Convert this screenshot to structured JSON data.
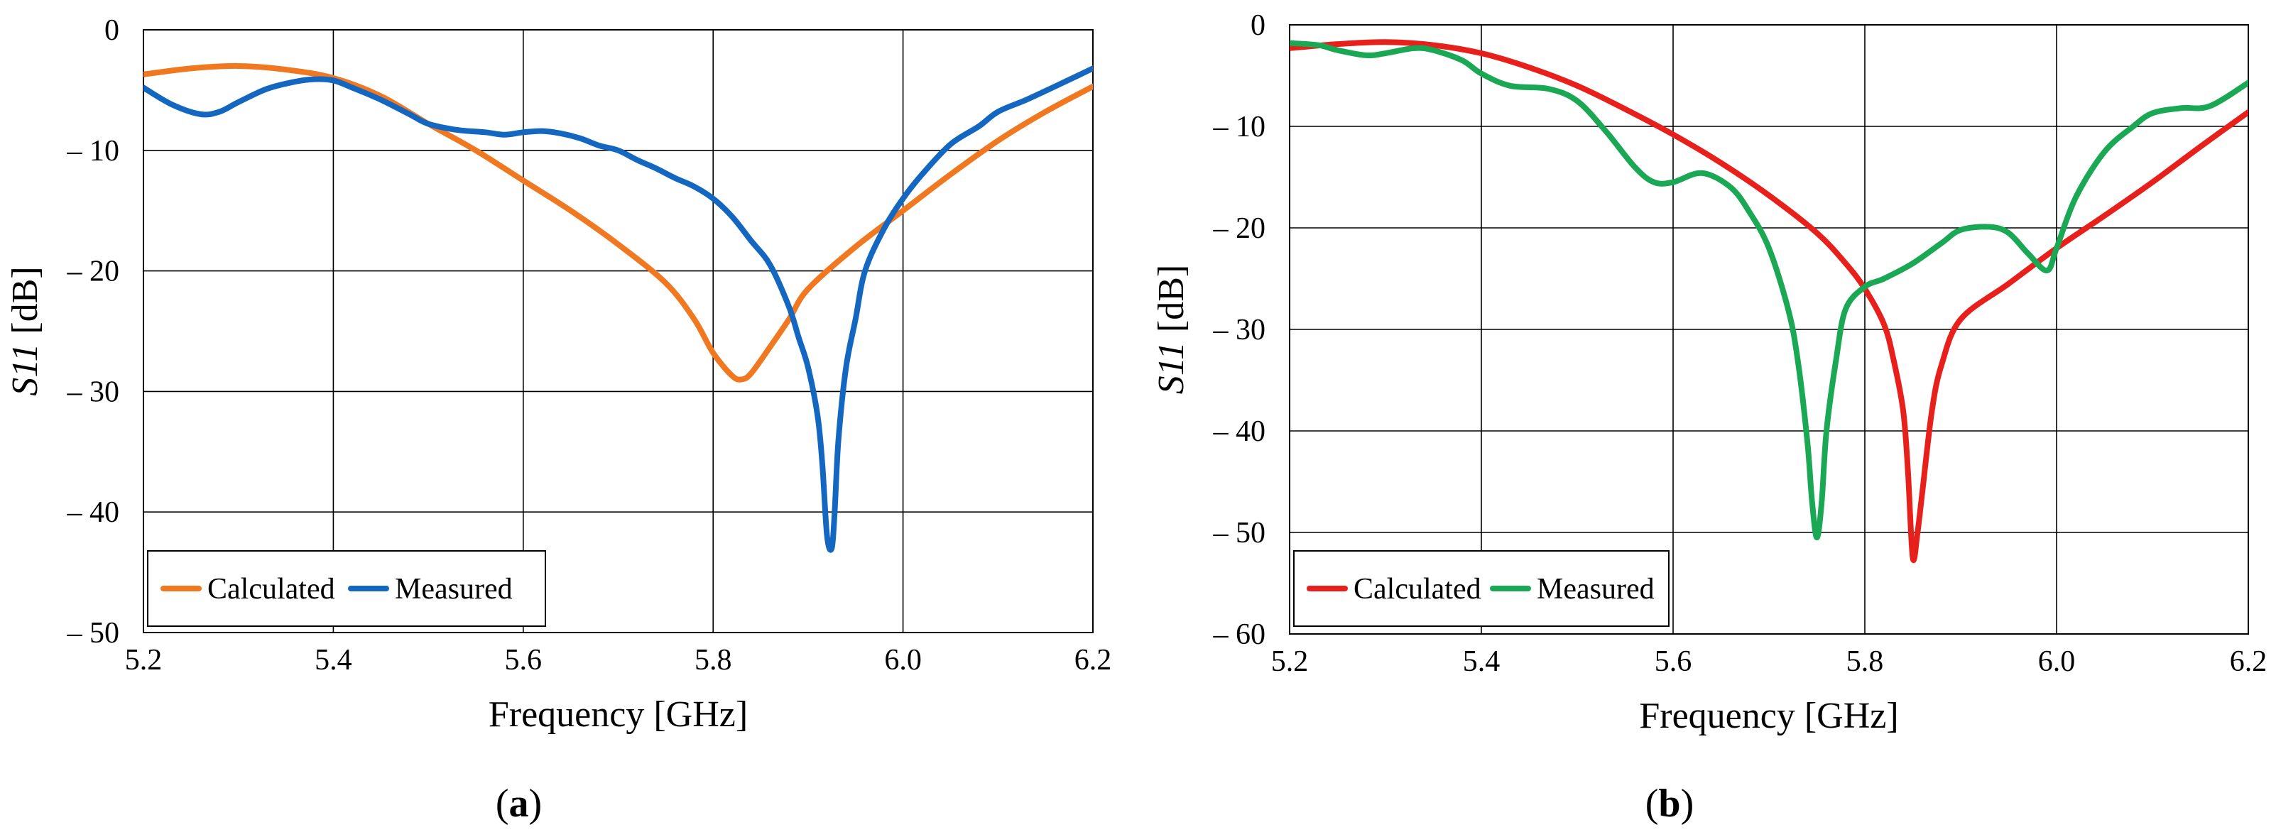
{
  "chart_data": [
    {
      "type": "line",
      "panel_label": "(a)",
      "panel_letter": "a",
      "xlabel": "Frequency [GHz]",
      "ylabel_italic": "S11",
      "ylabel_unit": " [dB]",
      "xlim": [
        5.2,
        6.2
      ],
      "ylim": [
        -50,
        0
      ],
      "xticks": [
        5.2,
        5.4,
        5.6,
        5.8,
        6.0,
        6.2
      ],
      "xtick_labels": [
        "5.2",
        "5.4",
        "5.6",
        "5.8",
        "6.0",
        "6.2"
      ],
      "yticks": [
        0,
        -10,
        -20,
        -30,
        -40,
        -50
      ],
      "ytick_labels": [
        "0",
        "– 10",
        "– 20",
        "– 30",
        "– 40",
        "– 50"
      ],
      "grid": true,
      "legend": "bottom-left",
      "series": [
        {
          "name": "Calculated",
          "color": "#F07820",
          "x": [
            5.2,
            5.25,
            5.3,
            5.35,
            5.4,
            5.45,
            5.5,
            5.55,
            5.6,
            5.65,
            5.7,
            5.75,
            5.78,
            5.8,
            5.82,
            5.83,
            5.84,
            5.86,
            5.88,
            5.9,
            5.95,
            6.0,
            6.05,
            6.1,
            6.15,
            6.2
          ],
          "y": [
            -3.7,
            -3.2,
            -3.0,
            -3.3,
            -4.0,
            -5.5,
            -7.8,
            -10.0,
            -12.5,
            -15.0,
            -17.8,
            -21.0,
            -24.0,
            -26.8,
            -28.7,
            -29.0,
            -28.5,
            -26.3,
            -24.0,
            -21.5,
            -18.0,
            -15.0,
            -12.0,
            -9.2,
            -6.8,
            -4.7
          ]
        },
        {
          "name": "Measured",
          "color": "#1467C1",
          "x": [
            5.2,
            5.23,
            5.26,
            5.28,
            5.3,
            5.33,
            5.36,
            5.38,
            5.4,
            5.42,
            5.45,
            5.48,
            5.5,
            5.53,
            5.56,
            5.58,
            5.6,
            5.62,
            5.64,
            5.66,
            5.68,
            5.7,
            5.72,
            5.74,
            5.76,
            5.78,
            5.8,
            5.82,
            5.84,
            5.86,
            5.88,
            5.89,
            5.9,
            5.91,
            5.915,
            5.92,
            5.925,
            5.928,
            5.932,
            5.94,
            5.95,
            5.96,
            5.98,
            6.0,
            6.02,
            6.05,
            6.08,
            6.1,
            6.13,
            6.16,
            6.2
          ],
          "y": [
            -4.8,
            -6.2,
            -7.0,
            -6.8,
            -6.0,
            -4.9,
            -4.3,
            -4.1,
            -4.2,
            -4.8,
            -5.8,
            -7.0,
            -7.8,
            -8.3,
            -8.5,
            -8.7,
            -8.5,
            -8.4,
            -8.6,
            -9.0,
            -9.6,
            -10.0,
            -10.8,
            -11.5,
            -12.3,
            -13.0,
            -14.0,
            -15.5,
            -17.5,
            -19.5,
            -23.0,
            -25.5,
            -28.0,
            -32.0,
            -36.0,
            -42.0,
            -43.0,
            -40.0,
            -34.0,
            -28.0,
            -24.0,
            -20.0,
            -16.5,
            -14.0,
            -12.0,
            -9.5,
            -8.0,
            -6.8,
            -5.8,
            -4.7,
            -3.2
          ]
        }
      ]
    },
    {
      "type": "line",
      "panel_label": "(b)",
      "panel_letter": "b",
      "xlabel": "Frequency [GHz]",
      "ylabel_italic": "S11",
      "ylabel_unit": " [dB]",
      "xlim": [
        5.2,
        6.2
      ],
      "ylim": [
        -60,
        0
      ],
      "xticks": [
        5.2,
        5.4,
        5.6,
        5.8,
        6.0,
        6.2
      ],
      "xtick_labels": [
        "5.2",
        "5.4",
        "5.6",
        "5.8",
        "6.0",
        "6.2"
      ],
      "yticks": [
        0,
        -10,
        -20,
        -30,
        -40,
        -50,
        -60
      ],
      "ytick_labels": [
        "0",
        "– 10",
        "– 20",
        "– 30",
        "– 40",
        "– 50",
        "– 60"
      ],
      "grid": true,
      "legend": "bottom-left",
      "series": [
        {
          "name": "Calculated",
          "color": "#E8201C",
          "x": [
            5.2,
            5.25,
            5.3,
            5.35,
            5.4,
            5.45,
            5.5,
            5.55,
            5.6,
            5.65,
            5.7,
            5.75,
            5.78,
            5.8,
            5.82,
            5.83,
            5.84,
            5.845,
            5.85,
            5.855,
            5.86,
            5.87,
            5.88,
            5.9,
            5.95,
            6.0,
            6.05,
            6.1,
            6.15,
            6.2
          ],
          "y": [
            -2.3,
            -1.9,
            -1.7,
            -2.0,
            -2.8,
            -4.2,
            -6.0,
            -8.3,
            -10.8,
            -13.6,
            -16.8,
            -20.5,
            -23.5,
            -26.0,
            -29.5,
            -33.0,
            -38.0,
            -44.0,
            -52.5,
            -50.0,
            -46.0,
            -38.0,
            -33.5,
            -29.0,
            -25.5,
            -22.0,
            -18.8,
            -15.5,
            -12.0,
            -8.6
          ]
        },
        {
          "name": "Measured",
          "color": "#1BA855",
          "x": [
            5.2,
            5.23,
            5.25,
            5.28,
            5.3,
            5.33,
            5.35,
            5.38,
            5.4,
            5.43,
            5.47,
            5.5,
            5.53,
            5.56,
            5.58,
            5.6,
            5.63,
            5.66,
            5.68,
            5.7,
            5.72,
            5.73,
            5.74,
            5.745,
            5.75,
            5.755,
            5.76,
            5.77,
            5.78,
            5.8,
            5.82,
            5.85,
            5.88,
            5.9,
            5.93,
            5.95,
            5.97,
            5.99,
            6.0,
            6.02,
            6.05,
            6.08,
            6.1,
            6.13,
            6.16,
            6.2
          ],
          "y": [
            -1.8,
            -2.0,
            -2.5,
            -3.0,
            -2.8,
            -2.3,
            -2.5,
            -3.5,
            -4.8,
            -6.0,
            -6.3,
            -7.5,
            -10.5,
            -14.0,
            -15.5,
            -15.5,
            -14.6,
            -16.0,
            -18.5,
            -22.0,
            -28.0,
            -33.0,
            -41.0,
            -47.0,
            -50.5,
            -47.0,
            -40.0,
            -33.0,
            -28.0,
            -25.8,
            -25.0,
            -23.5,
            -21.5,
            -20.2,
            -19.9,
            -20.5,
            -22.5,
            -24.2,
            -22.0,
            -17.0,
            -12.5,
            -10.0,
            -8.7,
            -8.2,
            -8.0,
            -5.7
          ]
        }
      ]
    }
  ]
}
